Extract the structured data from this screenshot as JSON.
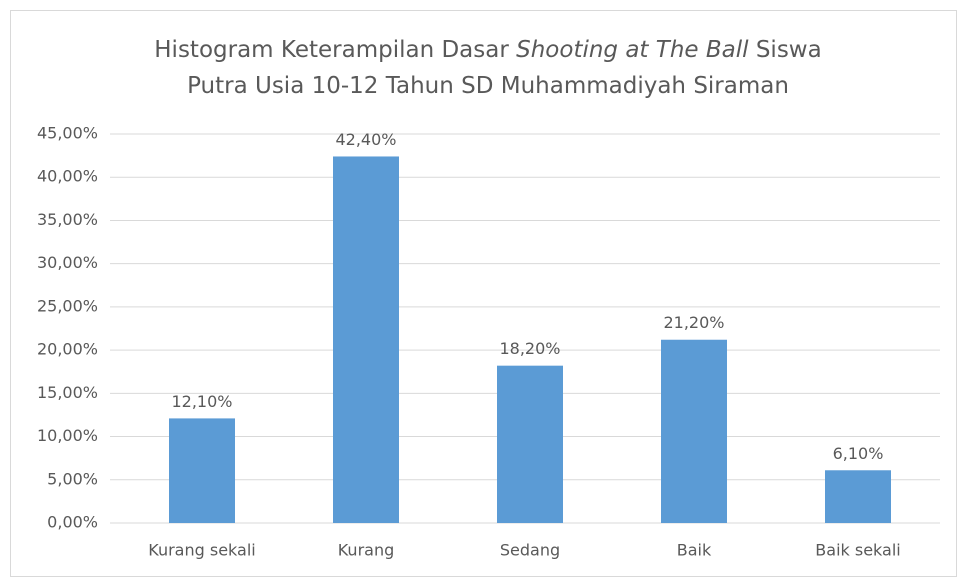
{
  "chart_data": {
    "type": "bar",
    "title": [
      [
        {
          "text": "Histogram Keterampilan Dasar "
        },
        {
          "text": "Shooting at The Ball",
          "italic": true
        },
        {
          "text": " Siswa"
        }
      ],
      [
        {
          "text": "Putra Usia 10-12 Tahun SD Muhammadiyah Siraman"
        }
      ]
    ],
    "categories": [
      "Kurang sekali",
      "Kurang",
      "Sedang",
      "Baik",
      "Baik sekali"
    ],
    "values": [
      12.1,
      42.4,
      18.2,
      21.2,
      6.1
    ],
    "value_labels": [
      "12,10%",
      "42,40%",
      "18,20%",
      "21,20%",
      "6,10%"
    ],
    "color": "#5b9bd5",
    "ylim": [
      0,
      45
    ],
    "yticks": [
      {
        "value": 0,
        "label": "0,00%"
      },
      {
        "value": 5,
        "label": "5,00%"
      },
      {
        "value": 10,
        "label": "10,00%"
      },
      {
        "value": 15,
        "label": "15,00%"
      },
      {
        "value": 20,
        "label": "20,00%"
      },
      {
        "value": 25,
        "label": "25,00%"
      },
      {
        "value": 30,
        "label": "30,00%"
      },
      {
        "value": 35,
        "label": "35,00%"
      },
      {
        "value": 40,
        "label": "40,00%"
      },
      {
        "value": 45,
        "label": "45,00%"
      }
    ],
    "grid": true
  }
}
